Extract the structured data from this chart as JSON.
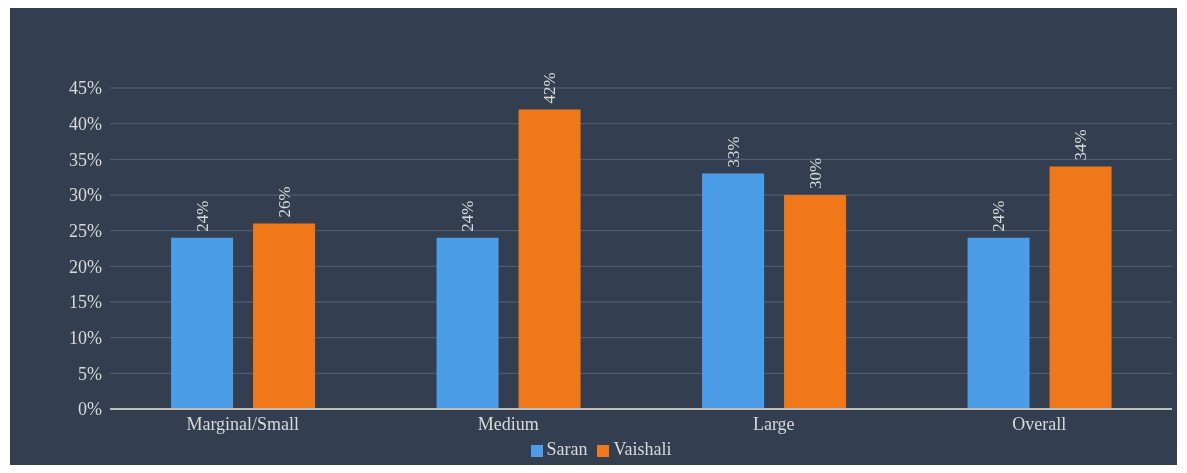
{
  "chart_data": {
    "type": "bar",
    "categories": [
      "Marginal/Small",
      "Medium",
      "Large",
      "Overall"
    ],
    "series": [
      {
        "name": "Saran",
        "color": "#4a9de6",
        "values": [
          24,
          24,
          33,
          24
        ],
        "value_labels": [
          "24%",
          "24%",
          "33%",
          "24%"
        ]
      },
      {
        "name": "Vaishali",
        "color": "#f07818",
        "values": [
          26,
          42,
          30,
          34
        ],
        "value_labels": [
          "26%",
          "42%",
          "30%",
          "34%"
        ]
      }
    ],
    "ylim": [
      0,
      45
    ],
    "yticks": [
      {
        "value": 0,
        "label": "0%"
      },
      {
        "value": 5,
        "label": "5%"
      },
      {
        "value": 10,
        "label": "10%"
      },
      {
        "value": 15,
        "label": "15%"
      },
      {
        "value": 20,
        "label": "20%"
      },
      {
        "value": 25,
        "label": "25%"
      },
      {
        "value": 30,
        "label": "30%"
      },
      {
        "value": 35,
        "label": "35%"
      },
      {
        "value": 40,
        "label": "40%"
      },
      {
        "value": 45,
        "label": "45%"
      }
    ],
    "grid": "y",
    "legend": "bottom"
  }
}
